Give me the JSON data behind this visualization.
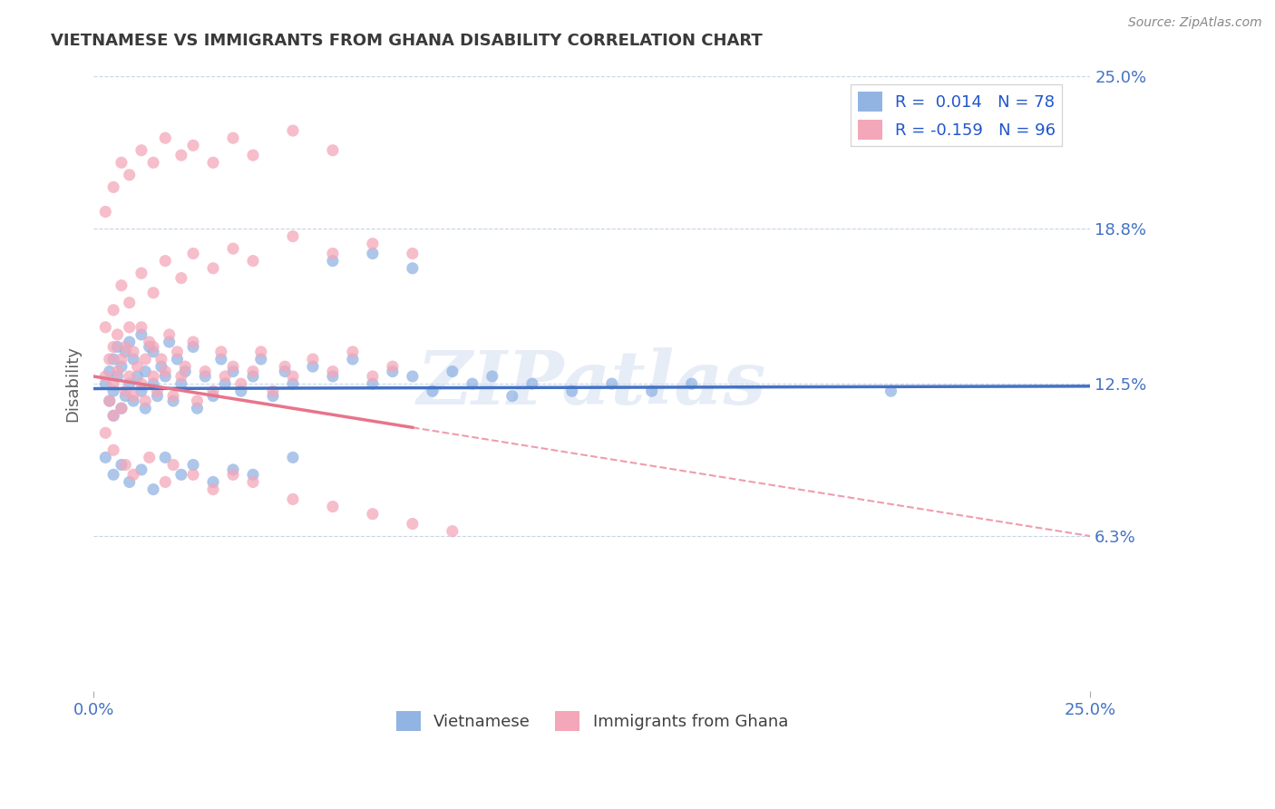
{
  "title": "VIETNAMESE VS IMMIGRANTS FROM GHANA DISABILITY CORRELATION CHART",
  "source": "Source: ZipAtlas.com",
  "ylabel": "Disability",
  "x_min": 0.0,
  "x_max": 0.25,
  "y_min": 0.0,
  "y_max": 0.25,
  "y_tick_labels": [
    "6.3%",
    "12.5%",
    "18.8%",
    "25.0%"
  ],
  "y_tick_values": [
    0.063,
    0.125,
    0.188,
    0.25
  ],
  "watermark": "ZIPatlas",
  "R_viet": 0.014,
  "N_viet": 78,
  "R_ghana": -0.159,
  "N_ghana": 96,
  "blue_color": "#92b4e3",
  "pink_color": "#f4a7b9",
  "line_blue": "#4472c4",
  "line_pink": "#e8748a",
  "title_color": "#3a3a3a",
  "axis_label_color": "#4472c4",
  "background_color": "#ffffff",
  "grid_color": "#c8d4ea",
  "viet_x": [
    0.003,
    0.004,
    0.004,
    0.005,
    0.005,
    0.005,
    0.006,
    0.006,
    0.007,
    0.007,
    0.008,
    0.008,
    0.009,
    0.009,
    0.01,
    0.01,
    0.011,
    0.012,
    0.012,
    0.013,
    0.013,
    0.014,
    0.015,
    0.015,
    0.016,
    0.017,
    0.018,
    0.019,
    0.02,
    0.021,
    0.022,
    0.023,
    0.025,
    0.026,
    0.028,
    0.03,
    0.032,
    0.033,
    0.035,
    0.037,
    0.04,
    0.042,
    0.045,
    0.048,
    0.05,
    0.055,
    0.06,
    0.065,
    0.07,
    0.075,
    0.08,
    0.085,
    0.09,
    0.095,
    0.1,
    0.105,
    0.11,
    0.12,
    0.13,
    0.14,
    0.003,
    0.005,
    0.007,
    0.009,
    0.012,
    0.015,
    0.018,
    0.022,
    0.025,
    0.03,
    0.035,
    0.04,
    0.05,
    0.06,
    0.07,
    0.08,
    0.15,
    0.2
  ],
  "viet_y": [
    0.125,
    0.13,
    0.118,
    0.122,
    0.135,
    0.112,
    0.128,
    0.14,
    0.115,
    0.132,
    0.12,
    0.138,
    0.125,
    0.142,
    0.118,
    0.135,
    0.128,
    0.122,
    0.145,
    0.13,
    0.115,
    0.14,
    0.125,
    0.138,
    0.12,
    0.132,
    0.128,
    0.142,
    0.118,
    0.135,
    0.125,
    0.13,
    0.14,
    0.115,
    0.128,
    0.12,
    0.135,
    0.125,
    0.13,
    0.122,
    0.128,
    0.135,
    0.12,
    0.13,
    0.125,
    0.132,
    0.128,
    0.135,
    0.125,
    0.13,
    0.128,
    0.122,
    0.13,
    0.125,
    0.128,
    0.12,
    0.125,
    0.122,
    0.125,
    0.122,
    0.095,
    0.088,
    0.092,
    0.085,
    0.09,
    0.082,
    0.095,
    0.088,
    0.092,
    0.085,
    0.09,
    0.088,
    0.095,
    0.175,
    0.178,
    0.172,
    0.125,
    0.122
  ],
  "ghana_x": [
    0.003,
    0.004,
    0.004,
    0.005,
    0.005,
    0.005,
    0.006,
    0.006,
    0.007,
    0.007,
    0.008,
    0.008,
    0.009,
    0.009,
    0.01,
    0.01,
    0.011,
    0.012,
    0.012,
    0.013,
    0.013,
    0.014,
    0.015,
    0.015,
    0.016,
    0.017,
    0.018,
    0.019,
    0.02,
    0.021,
    0.022,
    0.023,
    0.025,
    0.026,
    0.028,
    0.03,
    0.032,
    0.033,
    0.035,
    0.037,
    0.04,
    0.042,
    0.045,
    0.048,
    0.05,
    0.055,
    0.06,
    0.065,
    0.07,
    0.075,
    0.003,
    0.005,
    0.007,
    0.009,
    0.012,
    0.015,
    0.018,
    0.022,
    0.025,
    0.03,
    0.035,
    0.04,
    0.05,
    0.06,
    0.07,
    0.08,
    0.003,
    0.005,
    0.007,
    0.009,
    0.012,
    0.015,
    0.018,
    0.022,
    0.025,
    0.03,
    0.035,
    0.04,
    0.05,
    0.06,
    0.003,
    0.005,
    0.008,
    0.01,
    0.014,
    0.018,
    0.02,
    0.025,
    0.03,
    0.035,
    0.04,
    0.05,
    0.06,
    0.07,
    0.08,
    0.09
  ],
  "ghana_y": [
    0.128,
    0.135,
    0.118,
    0.125,
    0.14,
    0.112,
    0.13,
    0.145,
    0.115,
    0.135,
    0.122,
    0.14,
    0.128,
    0.148,
    0.12,
    0.138,
    0.132,
    0.125,
    0.148,
    0.135,
    0.118,
    0.142,
    0.128,
    0.14,
    0.122,
    0.135,
    0.13,
    0.145,
    0.12,
    0.138,
    0.128,
    0.132,
    0.142,
    0.118,
    0.13,
    0.122,
    0.138,
    0.128,
    0.132,
    0.125,
    0.13,
    0.138,
    0.122,
    0.132,
    0.128,
    0.135,
    0.13,
    0.138,
    0.128,
    0.132,
    0.148,
    0.155,
    0.165,
    0.158,
    0.17,
    0.162,
    0.175,
    0.168,
    0.178,
    0.172,
    0.18,
    0.175,
    0.185,
    0.178,
    0.182,
    0.178,
    0.195,
    0.205,
    0.215,
    0.21,
    0.22,
    0.215,
    0.225,
    0.218,
    0.222,
    0.215,
    0.225,
    0.218,
    0.228,
    0.22,
    0.105,
    0.098,
    0.092,
    0.088,
    0.095,
    0.085,
    0.092,
    0.088,
    0.082,
    0.088,
    0.085,
    0.078,
    0.075,
    0.072,
    0.068,
    0.065
  ]
}
